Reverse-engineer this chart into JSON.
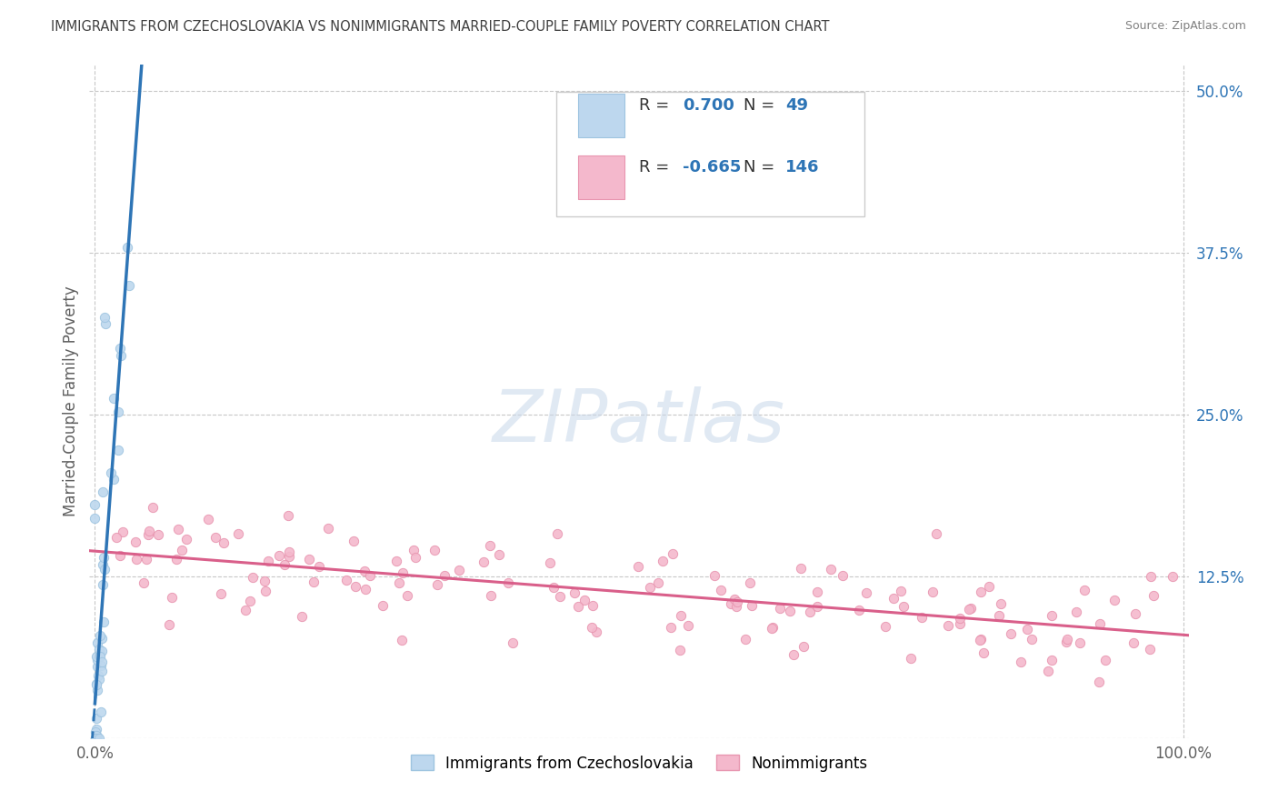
{
  "title": "IMMIGRANTS FROM CZECHOSLOVAKIA VS NONIMMIGRANTS MARRIED-COUPLE FAMILY POVERTY CORRELATION CHART",
  "source": "Source: ZipAtlas.com",
  "ylabel_label": "Married-Couple Family Poverty",
  "ylim": [
    0,
    0.52
  ],
  "xlim": [
    -0.005,
    1.005
  ],
  "blue_R": 0.7,
  "blue_N": 49,
  "pink_R": -0.665,
  "pink_N": 146,
  "blue_fill": "#bdd7ee",
  "blue_edge": "#9ec4e0",
  "pink_fill": "#f4b8cc",
  "pink_edge": "#e896b0",
  "blue_line_color": "#2e75b6",
  "pink_line_color": "#d95f8a",
  "grid_color": "#c8c8c8",
  "legend_label_blue": "Immigrants from Czechoslovakia",
  "legend_label_pink": "Nonimmigrants",
  "background_color": "#ffffff",
  "legend_R_color": "#2e75b6",
  "legend_N_color": "#2e75b6",
  "title_color": "#404040",
  "source_color": "#808080",
  "ytick_color": "#2e75b6",
  "xtick_color": "#606060",
  "ylabel_color": "#606060"
}
